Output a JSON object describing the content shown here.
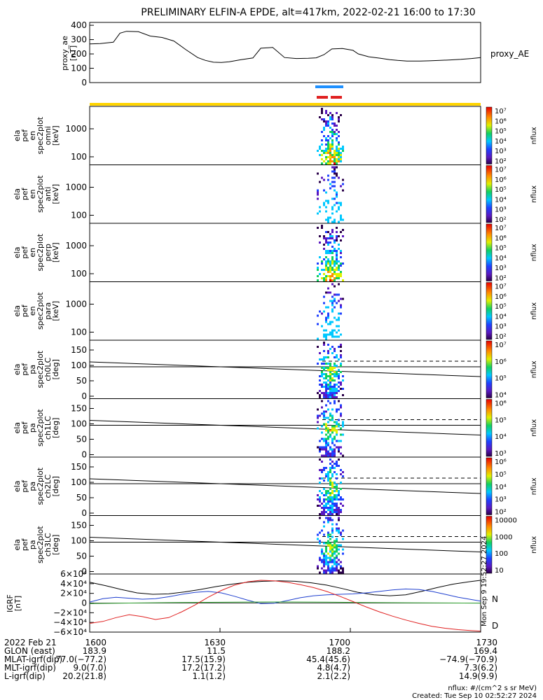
{
  "figure": {
    "title": "PRELIMINARY ELFIN-A EPDE, alt=417km, 2022-02-21 16:00 to 17:30",
    "side_stamp": "Mon Sep 9 19:52:27 2024"
  },
  "chart_data": [
    {
      "id": "proxy_ae",
      "type": "line",
      "ylabel_lines": [
        "proxy_ae",
        "[nT]"
      ],
      "legend": "proxy_AE",
      "yticks": [
        "400",
        "300",
        "200",
        "100",
        "0"
      ],
      "ylim": [
        0,
        420
      ],
      "x_minutes": [
        0,
        8,
        18,
        23,
        28,
        37,
        46,
        55,
        64,
        73,
        82,
        88,
        94,
        100,
        106,
        115,
        124,
        130,
        139,
        148,
        157,
        166,
        172,
        178,
        184,
        192,
        200,
        204,
        212,
        221,
        228,
        234,
        241,
        246,
        251,
        258,
        266,
        274,
        282,
        290,
        297
      ],
      "values": [
        270,
        272,
        282,
        345,
        358,
        355,
        325,
        315,
        290,
        230,
        175,
        155,
        142,
        140,
        145,
        160,
        172,
        240,
        245,
        175,
        168,
        170,
        173,
        195,
        235,
        238,
        225,
        200,
        180,
        170,
        160,
        155,
        150,
        150,
        150,
        152,
        155,
        158,
        162,
        168,
        175
      ]
    },
    {
      "id": "omni",
      "type": "heatmap",
      "row": 0,
      "ylabel_lines": [
        "ela",
        "pef",
        "en",
        "spec2plot",
        "omni",
        "[keV]"
      ],
      "yticks": [
        "1000",
        "100"
      ],
      "colorbar": {
        "label": "nflux",
        "ticks": [
          "10⁷",
          "10⁶",
          "10⁵",
          "10⁴",
          "10³",
          "10²"
        ]
      }
    },
    {
      "id": "anti",
      "type": "heatmap",
      "row": 1,
      "ylabel_lines": [
        "ela",
        "pef",
        "en",
        "spec2plot",
        "anti",
        "[keV]"
      ],
      "yticks": [
        "1000",
        "100"
      ],
      "colorbar": {
        "label": "nflux",
        "ticks": [
          "10⁷",
          "10⁶",
          "10⁵",
          "10⁴",
          "10³",
          "10²"
        ]
      }
    },
    {
      "id": "perp",
      "type": "heatmap",
      "row": 2,
      "ylabel_lines": [
        "ela",
        "pef",
        "en",
        "spec2plot",
        "perp",
        "[keV]"
      ],
      "yticks": [
        "1000",
        "100"
      ],
      "colorbar": {
        "label": "nflux",
        "ticks": [
          "10⁷",
          "10⁶",
          "10⁵",
          "10⁴",
          "10³",
          "10²"
        ]
      }
    },
    {
      "id": "para",
      "type": "heatmap",
      "row": 3,
      "ylabel_lines": [
        "ela",
        "pef",
        "en",
        "spec2plot",
        "para",
        "[keV]"
      ],
      "yticks": [
        "1000",
        "100"
      ],
      "colorbar": {
        "label": "nflux",
        "ticks": [
          "10⁷",
          "10⁶",
          "10⁵",
          "10⁴",
          "10³",
          "10²"
        ]
      }
    },
    {
      "id": "ch0LC",
      "type": "heatmap",
      "row": 4,
      "ylabel_lines": [
        "ela",
        "pef",
        "pa",
        "spec2plot",
        "ch0LC",
        "[deg]"
      ],
      "yticks": [
        "150",
        "100",
        "50",
        "0"
      ],
      "colorbar": {
        "label": "nflux",
        "ticks": [
          "10⁷",
          "10⁶",
          "10⁵",
          "10⁴"
        ]
      }
    },
    {
      "id": "ch1LC",
      "type": "heatmap",
      "row": 5,
      "ylabel_lines": [
        "ela",
        "pef",
        "pa",
        "spec2plot",
        "ch1LC",
        "[deg]"
      ],
      "yticks": [
        "150",
        "100",
        "50",
        "0"
      ],
      "colorbar": {
        "label": "nflux",
        "ticks": [
          "10⁶",
          "10⁵",
          "10⁴",
          "10³"
        ]
      }
    },
    {
      "id": "ch2LC",
      "type": "heatmap",
      "row": 6,
      "ylabel_lines": [
        "ela",
        "pef",
        "pa",
        "spec2plot",
        "ch2LC",
        "[deg]"
      ],
      "yticks": [
        "150",
        "100",
        "50",
        "0"
      ],
      "colorbar": {
        "label": "nflux",
        "ticks": [
          "10⁶",
          "10⁵",
          "10⁴",
          "10³",
          "10²"
        ]
      }
    },
    {
      "id": "ch3LC",
      "type": "heatmap",
      "row": 7,
      "ylabel_lines": [
        "ela",
        "pef",
        "pa",
        "spec2plot",
        "ch3LC",
        "[deg]"
      ],
      "yticks": [
        "150",
        "100",
        "50",
        "0"
      ],
      "colorbar": {
        "label": "nflux",
        "ticks": [
          "10000",
          "1000",
          "100",
          "10"
        ]
      }
    },
    {
      "id": "igrf",
      "type": "line",
      "ylabel_lines": [
        "IGRF",
        "[nT]"
      ],
      "yticks": [
        "6×10⁴",
        "4×10⁴",
        "2×10⁴",
        "0",
        "−2×10⁴",
        "−4×10⁴",
        "−6×10⁴"
      ],
      "ylim": [
        -60000,
        60000
      ],
      "legend": [
        {
          "name": "N",
          "color": "#2ca02c"
        },
        {
          "name": "D",
          "color": "#e02020"
        }
      ],
      "series": [
        {
          "color": "#000000",
          "x_minutes": [
            0,
            12,
            24,
            36,
            48,
            60,
            72,
            84,
            96,
            108,
            120,
            132,
            144,
            156,
            168,
            180,
            192,
            204,
            216,
            228,
            240,
            252,
            264,
            276,
            288,
            297
          ],
          "values": [
            43000,
            36000,
            28000,
            21000,
            18000,
            19000,
            23000,
            28000,
            34000,
            39000,
            43000,
            45000,
            46000,
            45000,
            42000,
            37000,
            30000,
            22000,
            17000,
            15000,
            17000,
            24000,
            32000,
            39000,
            44000,
            47000
          ]
        },
        {
          "color": "#1f3fcf",
          "x_minutes": [
            0,
            10,
            20,
            30,
            40,
            50,
            60,
            70,
            80,
            90,
            100,
            110,
            120,
            130,
            140,
            150,
            160,
            170,
            180,
            190,
            200,
            210,
            220,
            230,
            240,
            250,
            260,
            270,
            280,
            297
          ],
          "values": [
            2000,
            9000,
            12000,
            10000,
            8000,
            9000,
            13000,
            18000,
            22000,
            24000,
            21000,
            14000,
            6000,
            -1000,
            -500,
            5000,
            11000,
            15000,
            17000,
            18000,
            19000,
            21000,
            24000,
            27000,
            29000,
            28000,
            24000,
            18000,
            12000,
            4000
          ]
        },
        {
          "color": "#2ca02c",
          "x_minutes": [
            0,
            30,
            60,
            90,
            120,
            150,
            180,
            210,
            240,
            270,
            297
          ],
          "values": [
            -1000,
            0,
            800,
            1500,
            2000,
            2200,
            1800,
            1200,
            600,
            200,
            -200
          ]
        },
        {
          "color": "#e02020",
          "x_minutes": [
            0,
            10,
            20,
            30,
            40,
            50,
            60,
            70,
            80,
            90,
            100,
            110,
            120,
            130,
            140,
            150,
            160,
            170,
            180,
            190,
            200,
            210,
            220,
            230,
            240,
            250,
            260,
            270,
            280,
            290,
            297
          ],
          "values": [
            -42000,
            -38000,
            -30000,
            -24000,
            -28000,
            -34000,
            -30000,
            -18000,
            -4000,
            12000,
            26000,
            37000,
            44000,
            47000,
            46000,
            43000,
            38000,
            32000,
            24000,
            14000,
            3000,
            -8000,
            -18000,
            -27000,
            -35000,
            -42000,
            -48000,
            -52000,
            -55000,
            -57000,
            -58000
          ]
        }
      ]
    }
  ],
  "footer": {
    "rows": [
      {
        "label": "2022 Feb 21",
        "values": [
          "1600",
          "1630",
          "1700",
          "1730"
        ]
      },
      {
        "label": "GLON (east)",
        "values": [
          "183.9",
          "11.5",
          "188.2",
          "169.4"
        ]
      },
      {
        "label": "MLAT-igrf(dip)",
        "values": [
          "77.0(−77.2)",
          "17.5(15.9)",
          "45.4(45.6)",
          "−74.9(−70.9)"
        ]
      },
      {
        "label": "MLT-igrf(dip)",
        "values": [
          "9.0(7.0)",
          "17.2(17.2)",
          "4.8(4.7)",
          "7.3(6.2)"
        ]
      },
      {
        "label": "L-igrf(dip)",
        "values": [
          "20.2(21.8)",
          "1.1(1.2)",
          "2.1(2.2)",
          "14.9(9.9)"
        ]
      }
    ],
    "notes": [
      "nflux: #/(cm^2 s sr MeV)",
      "Created: Tue Sep 10 02:52:27 2024"
    ]
  }
}
